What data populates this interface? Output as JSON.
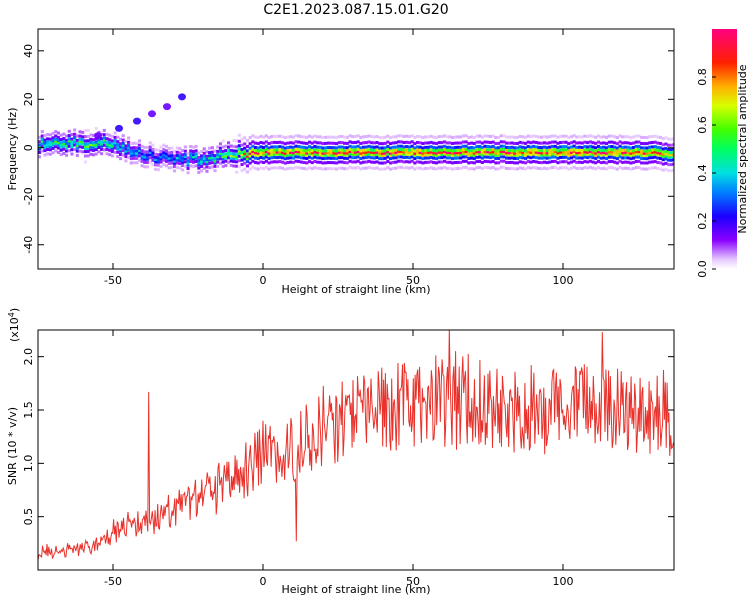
{
  "figure": {
    "title": "C2E1.2023.087.15.01.G20"
  },
  "chart_data": [
    {
      "type": "heatmap",
      "xlabel": "Height of straight line (km)",
      "ylabel": "Frequency (Hz)",
      "xlim": [
        -75,
        137
      ],
      "ylim": [
        -50,
        49
      ],
      "xticks": [
        -50,
        0,
        50,
        100
      ],
      "yticks": [
        40,
        20,
        0,
        -20,
        -40
      ],
      "colorbar": {
        "label": "Normalized spectral amplitude",
        "range": [
          0,
          1
        ],
        "ticks": [
          "0.0",
          "0.2",
          "0.4",
          "0.6",
          "0.8"
        ],
        "colormap": "rainbow (violet → blue → cyan → green → yellow → red → magenta)"
      },
      "ridge": {
        "x": [
          -75,
          -70,
          -65,
          -60,
          -55,
          -50,
          -45,
          -40,
          -35,
          -30,
          -25,
          -20,
          -15,
          -10,
          -5,
          0,
          10,
          30,
          50,
          70,
          90,
          110,
          130,
          137
        ],
        "y": [
          1,
          2,
          2,
          2,
          2,
          1,
          -1,
          -3,
          -4,
          -5,
          -5,
          -5,
          -4,
          -3,
          -2,
          -2,
          -2,
          -2,
          -2,
          -2,
          -2,
          -2,
          -2,
          -3
        ],
        "amplitude": [
          0.45,
          0.5,
          0.5,
          0.55,
          0.5,
          0.45,
          0.4,
          0.35,
          0.3,
          0.35,
          0.4,
          0.45,
          0.5,
          0.6,
          0.85,
          0.9,
          0.9,
          0.9,
          0.9,
          0.9,
          0.9,
          0.9,
          0.9,
          0.7
        ]
      },
      "branch": {
        "x": [
          -55,
          -48,
          -42,
          -37,
          -32,
          -27
        ],
        "y": [
          5,
          8,
          11,
          14,
          17,
          21
        ],
        "amplitude": [
          0.15,
          0.2,
          0.2,
          0.15,
          0.15,
          0.2
        ]
      },
      "grid": false
    },
    {
      "type": "line",
      "xlabel": "Height of straight line (km)",
      "ylabel": "SNR (10 * v/v)",
      "scale_label": "(x10",
      "scale_exp": "4",
      "scale_close": ")",
      "xlim": [
        -75,
        137
      ],
      "ylim": [
        0,
        22500
      ],
      "xticks": [
        -50,
        0,
        50,
        100
      ],
      "yticks": [
        "0.5",
        "1.0",
        "1.5",
        "2.0"
      ],
      "series": [
        {
          "color": "#e8312a",
          "trend_x": [
            -75,
            -60,
            -50,
            -40,
            -30,
            -20,
            -10,
            0,
            10,
            20,
            30,
            40,
            50,
            60,
            70,
            80,
            90,
            100,
            110,
            120,
            130,
            137
          ],
          "trend_y": [
            1500,
            2000,
            3500,
            4500,
            5500,
            7000,
            8500,
            11000,
            11000,
            13500,
            14500,
            15500,
            15500,
            16000,
            16000,
            15500,
            15000,
            15000,
            15500,
            15000,
            15000,
            14500
          ],
          "notable_points": [
            {
              "x": -38,
              "y": 16700
            },
            {
              "x": 11,
              "y": 2700
            },
            {
              "x": 62,
              "y": 22600
            },
            {
              "x": 113,
              "y": 22300
            }
          ]
        }
      ],
      "grid": false
    }
  ]
}
